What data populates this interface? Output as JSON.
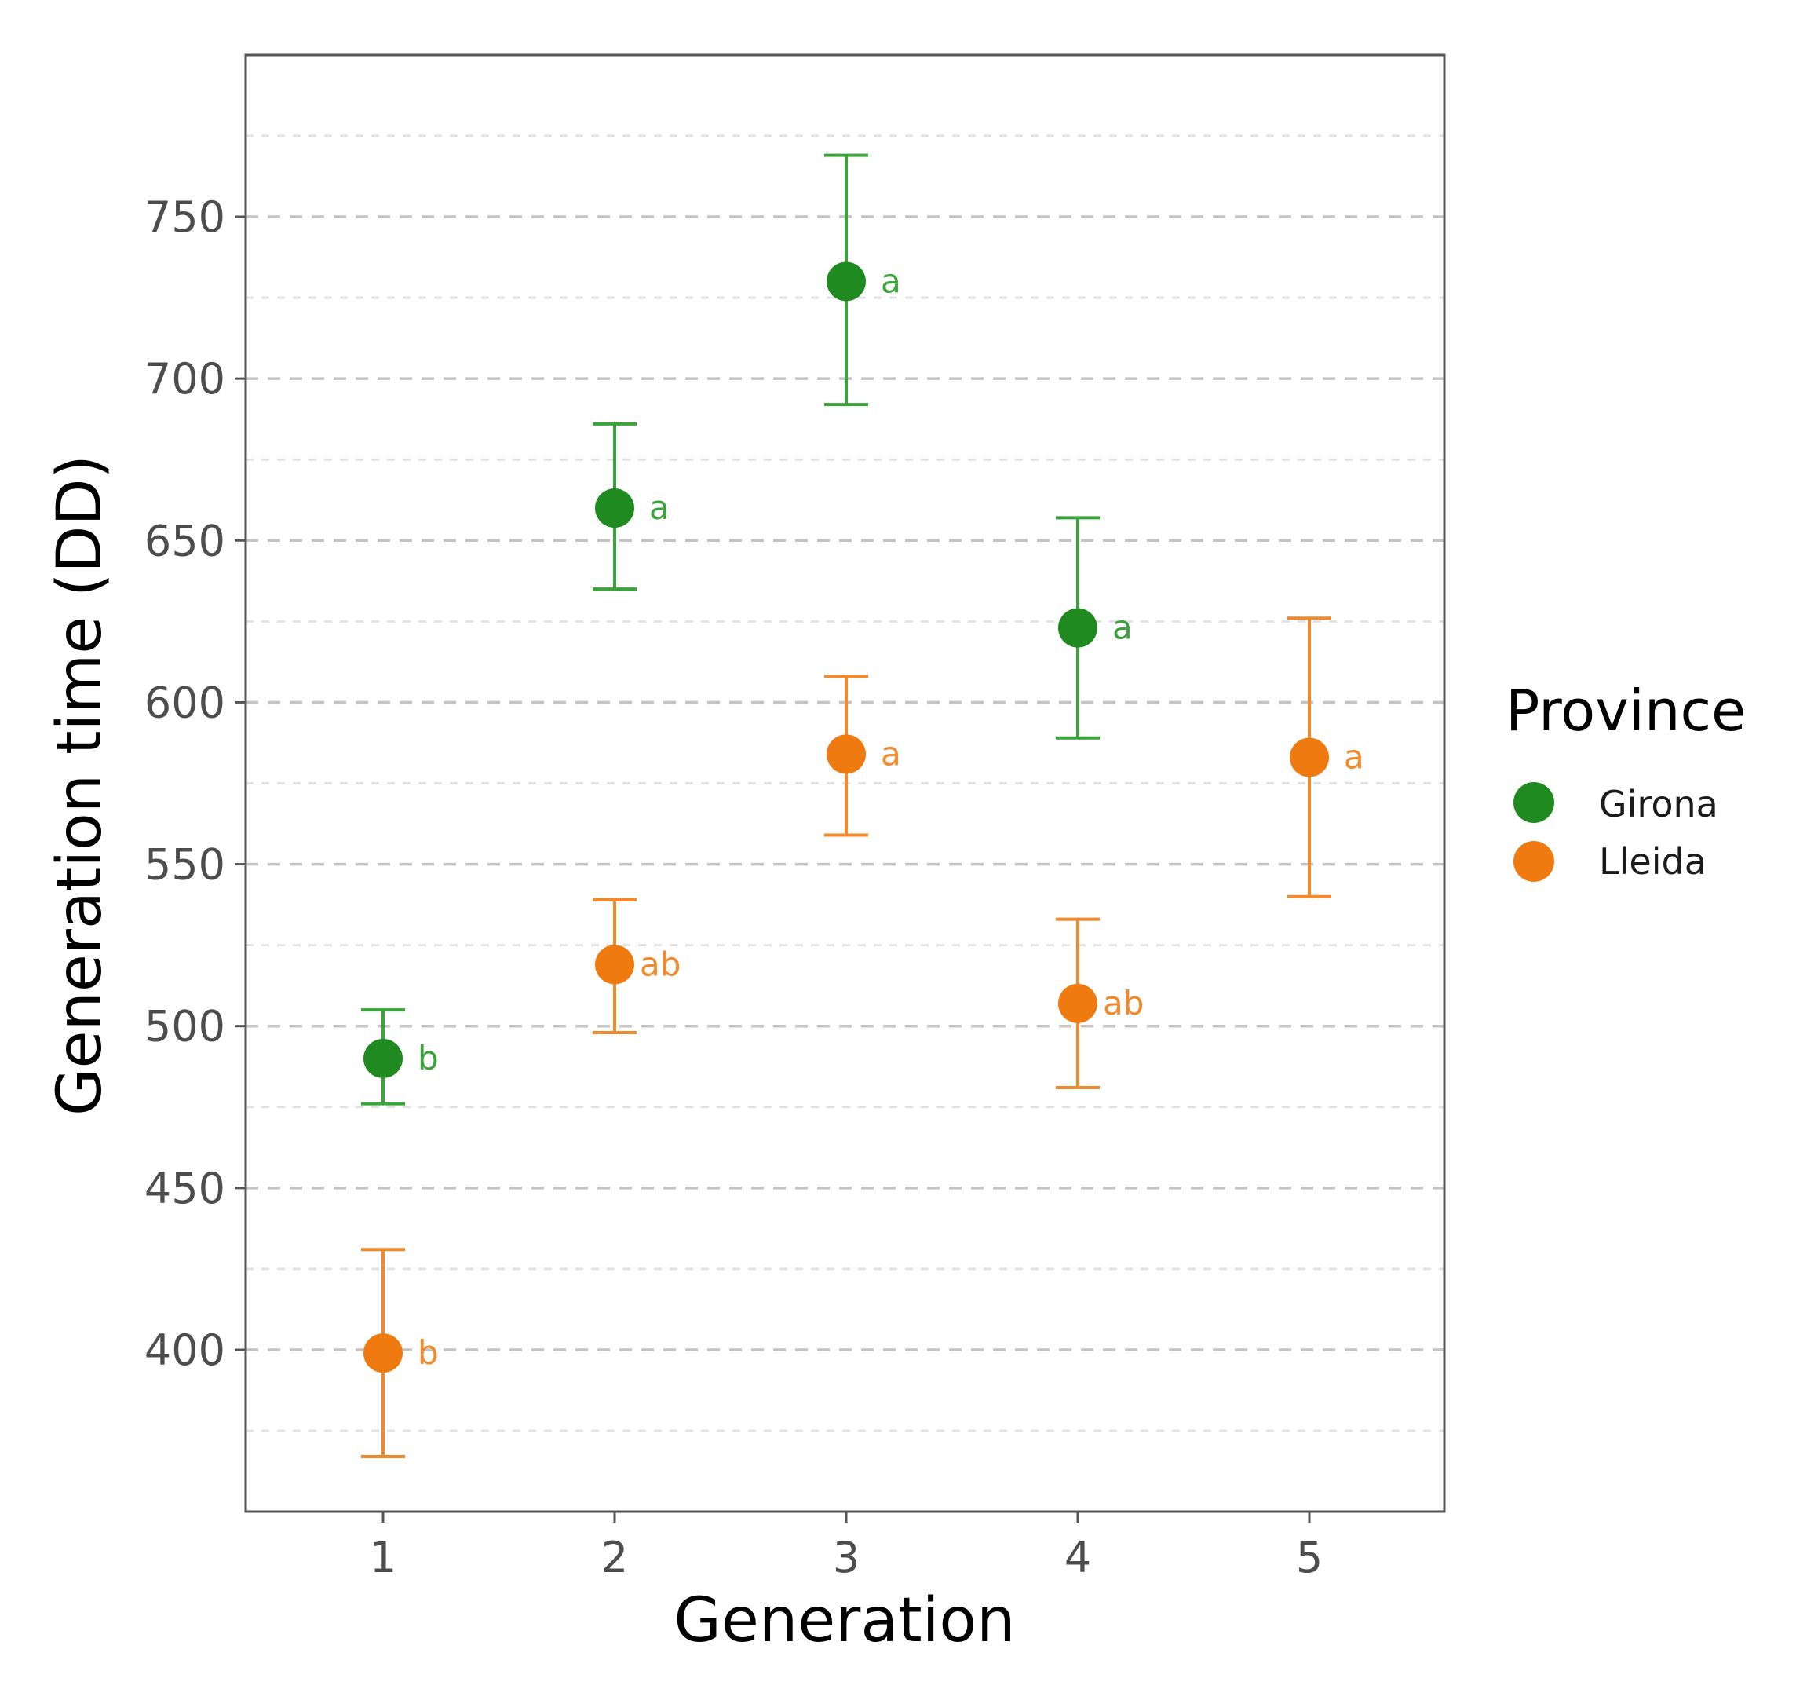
{
  "chart_data": {
    "type": "scatter",
    "xlabel": "Generation",
    "ylabel": "Generation time (DD)",
    "categories": [
      "1",
      "2",
      "3",
      "4",
      "5"
    ],
    "ylim": [
      350,
      790
    ],
    "yticks": [
      400,
      450,
      500,
      550,
      600,
      650,
      700,
      750
    ],
    "grid": "horizontal dashed",
    "legend": {
      "title": "Province",
      "position": "right",
      "entries": [
        "Girona",
        "Lleida"
      ]
    },
    "series": [
      {
        "name": "Girona",
        "color": "#1f8a1f",
        "errorbar_color": "#3aa33a",
        "points": [
          {
            "x": "1",
            "y": 490,
            "lower": 476,
            "upper": 505,
            "label": "b"
          },
          {
            "x": "2",
            "y": 660,
            "lower": 635,
            "upper": 686,
            "label": "a"
          },
          {
            "x": "3",
            "y": 730,
            "lower": 692,
            "upper": 769,
            "label": "a"
          },
          {
            "x": "4",
            "y": 623,
            "lower": 589,
            "upper": 657,
            "label": "a"
          }
        ]
      },
      {
        "name": "Lleida",
        "color": "#ee7a10",
        "errorbar_color": "#f08a2c",
        "points": [
          {
            "x": "1",
            "y": 399,
            "lower": 367,
            "upper": 431,
            "label": "b"
          },
          {
            "x": "2",
            "y": 519,
            "lower": 498,
            "upper": 539,
            "label": "ab"
          },
          {
            "x": "3",
            "y": 584,
            "lower": 559,
            "upper": 608,
            "label": "a"
          },
          {
            "x": "4",
            "y": 507,
            "lower": 481,
            "upper": 533,
            "label": "ab"
          },
          {
            "x": "5",
            "y": 583,
            "lower": 540,
            "upper": 626,
            "label": "a"
          }
        ]
      }
    ]
  }
}
